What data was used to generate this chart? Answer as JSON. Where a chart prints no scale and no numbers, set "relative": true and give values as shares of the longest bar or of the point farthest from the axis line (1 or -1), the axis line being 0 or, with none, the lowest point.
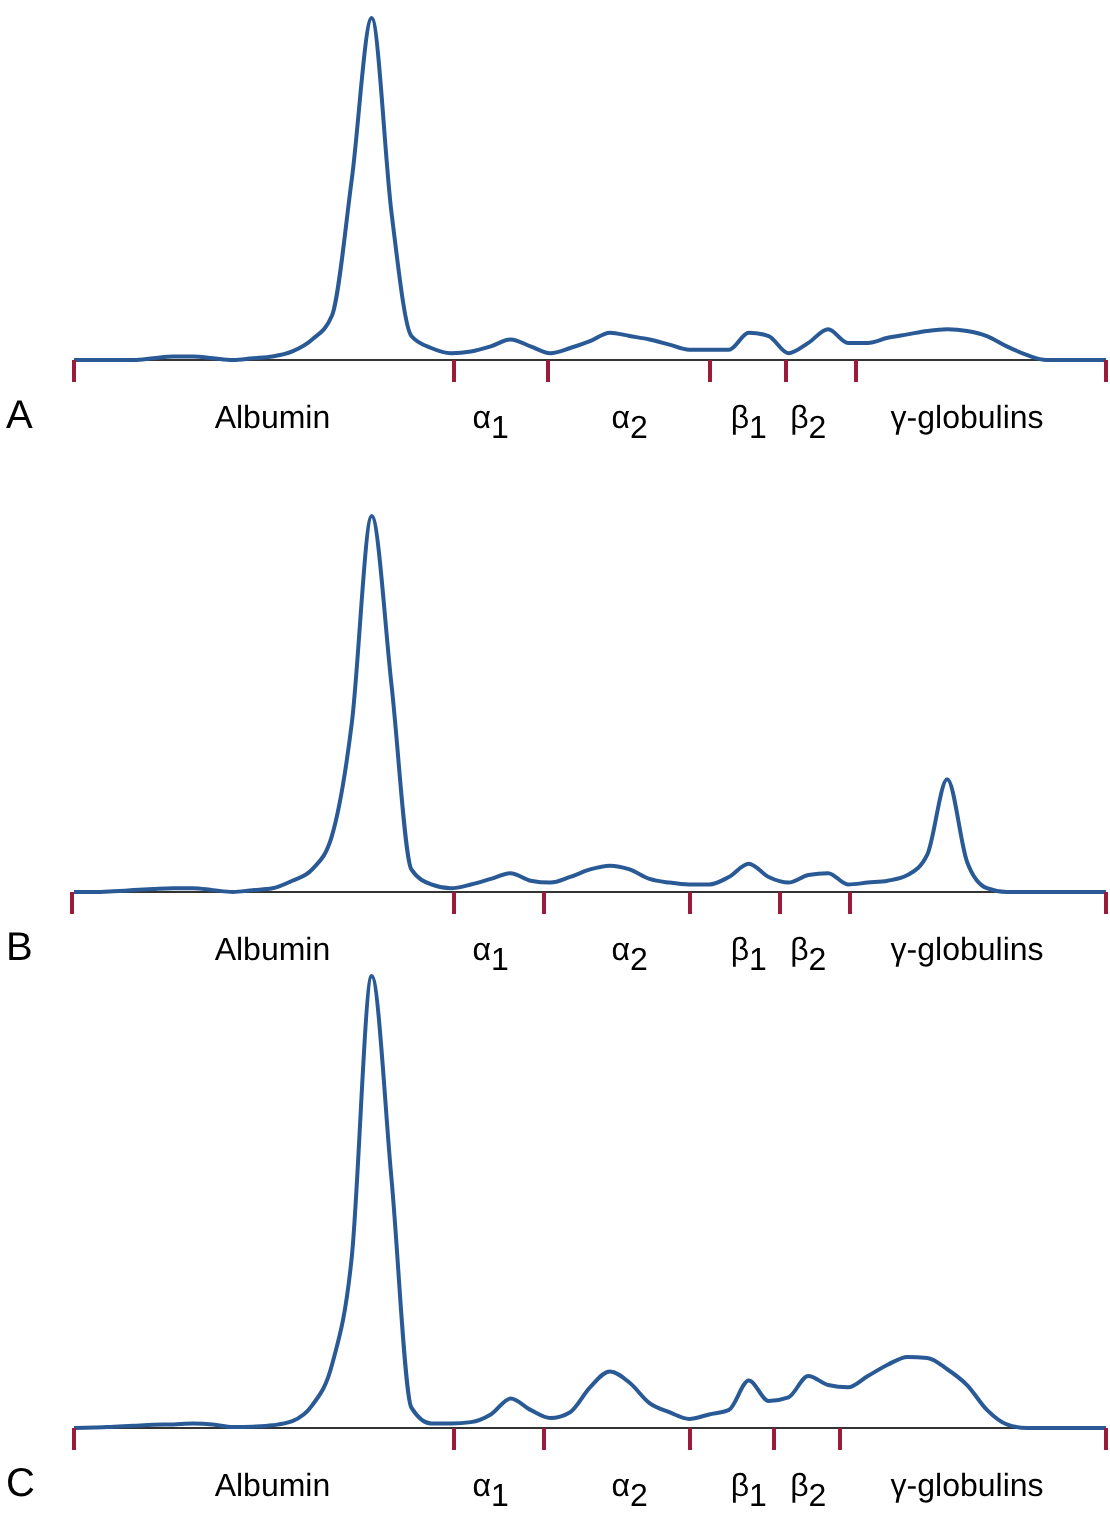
{
  "chart_data": [
    {
      "type": "line",
      "title": "A",
      "relative": true,
      "categories": [
        null,
        null,
        null,
        null,
        null,
        null,
        null,
        null,
        null,
        null,
        "Albumin",
        null,
        null,
        null,
        null,
        null,
        null,
        null,
        null,
        null,
        null,
        "α$_{1}$",
        null,
        null,
        null,
        null,
        null,
        null,
        "α$_{2}$",
        null,
        null,
        null,
        null,
        null,
        "β$_{1}$",
        null,
        null,
        "β$_{2}$",
        null,
        null,
        null,
        null,
        null,
        null,
        null,
        "γ-globulins",
        null,
        null,
        null,
        null,
        null,
        null,
        null
      ],
      "series": [
        {
          "color": "#2a5a96",
          "values": [
            0,
            0,
            0,
            0,
            0.005,
            0.01,
            0.01,
            0.005,
            0,
            0.005,
            0.01,
            0.025,
            0.06,
            0.13,
            0.53,
            1,
            0.43,
            0.07,
            0.035,
            0.02,
            0.025,
            0.04,
            0.06,
            0.04,
            0.02,
            0.035,
            0.055,
            0.08,
            0.07,
            0.06,
            0.045,
            0.03,
            0.03,
            0.03,
            0.08,
            0.07,
            0.02,
            0.05,
            0.09,
            0.05,
            0.05,
            0.065,
            0.075,
            0.085,
            0.09,
            0.085,
            0.07,
            0.04,
            0.015,
            0,
            0,
            0,
            0
          ]
        }
      ]
    },
    {
      "type": "line",
      "title": "B",
      "relative": true,
      "categories": [
        null,
        null,
        null,
        null,
        null,
        null,
        null,
        null,
        null,
        null,
        "Albumin",
        null,
        null,
        null,
        null,
        null,
        null,
        null,
        null,
        null,
        null,
        "α$_{1}$",
        null,
        null,
        null,
        null,
        null,
        null,
        "α$_{2}$",
        null,
        null,
        null,
        null,
        null,
        "β$_{1}$",
        null,
        null,
        "β$_{2}$",
        null,
        null,
        null,
        null,
        null,
        null,
        null,
        "γ-globulins",
        null,
        null,
        null,
        null,
        null,
        null,
        null
      ],
      "series": [
        {
          "color": "#2a5a96",
          "values": [
            0,
            0,
            0.002,
            0.005,
            0.008,
            0.01,
            0.01,
            0.005,
            0,
            0.005,
            0.01,
            0.03,
            0.06,
            0.15,
            0.45,
            1,
            0.55,
            0.06,
            0.02,
            0.01,
            0.02,
            0.035,
            0.05,
            0.03,
            0.025,
            0.04,
            0.06,
            0.07,
            0.06,
            0.035,
            0.025,
            0.02,
            0.02,
            0.04,
            0.075,
            0.04,
            0.025,
            0.045,
            0.05,
            0.02,
            0.025,
            0.03,
            0.045,
            0.1,
            0.3,
            0.08,
            0.01,
            0,
            0,
            0,
            0,
            0,
            0
          ]
        }
      ]
    },
    {
      "type": "line",
      "title": "C",
      "relative": true,
      "categories": [
        null,
        null,
        null,
        null,
        null,
        null,
        null,
        null,
        null,
        null,
        "Albumin",
        null,
        null,
        null,
        null,
        null,
        null,
        null,
        null,
        null,
        null,
        "α$_{1}$",
        null,
        null,
        null,
        null,
        null,
        null,
        "α$_{2}$",
        null,
        null,
        null,
        null,
        null,
        "β$_{1}$",
        null,
        null,
        "β$_{2}$",
        null,
        null,
        null,
        null,
        null,
        null,
        null,
        "γ-globulins",
        null,
        null,
        null,
        null,
        null,
        null,
        null
      ],
      "series": [
        {
          "color": "#2a5a96",
          "values": [
            0,
            0.001,
            0.003,
            0.005,
            0.007,
            0.008,
            0.01,
            0.008,
            0.002,
            0.003,
            0.006,
            0.015,
            0.05,
            0.14,
            0.38,
            1,
            0.55,
            0.045,
            0.01,
            0.01,
            0.013,
            0.03,
            0.065,
            0.04,
            0.022,
            0.035,
            0.09,
            0.125,
            0.1,
            0.055,
            0.035,
            0.02,
            0.03,
            0.04,
            0.105,
            0.06,
            0.068,
            0.115,
            0.095,
            0.09,
            0.115,
            0.14,
            0.157,
            0.155,
            0.13,
            0.095,
            0.04,
            0.008,
            0,
            0,
            0,
            0,
            0
          ]
        }
      ]
    }
  ]
}
